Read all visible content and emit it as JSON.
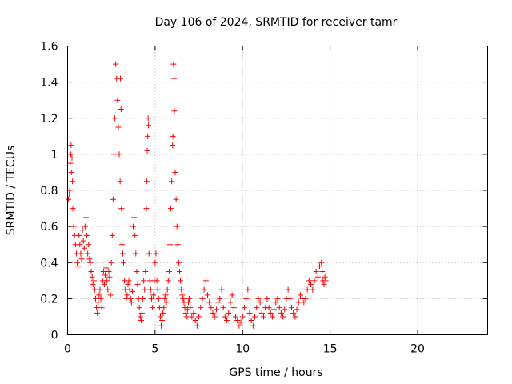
{
  "chart_data": {
    "type": "scatter",
    "title": "Day 106 of 2024, SRMTID for receiver tamr",
    "xlabel": "GPS time / hours",
    "ylabel": "SRMTID / TECUs",
    "xlim": [
      0,
      24
    ],
    "ylim": [
      0,
      1.6
    ],
    "xticks": [
      0,
      5,
      10,
      15,
      20
    ],
    "yticks": [
      0,
      0.2,
      0.4,
      0.6,
      0.8,
      1.0,
      1.2,
      1.4,
      1.6
    ],
    "xtick_labels": [
      "0",
      "5",
      "10",
      "15",
      "20"
    ],
    "ytick_labels": [
      "0",
      "0.2",
      "0.4",
      "0.6",
      "0.8",
      "1",
      "1.2",
      "1.4",
      "1.6"
    ],
    "grid": true,
    "marker": "+",
    "color": "#ff0000",
    "series": [
      {
        "name": "tamr",
        "points": [
          [
            0.05,
            0.75
          ],
          [
            0.1,
            0.78
          ],
          [
            0.12,
            0.8
          ],
          [
            0.15,
            0.95
          ],
          [
            0.18,
            1.0
          ],
          [
            0.2,
            1.05
          ],
          [
            0.22,
            0.9
          ],
          [
            0.25,
            0.98
          ],
          [
            0.28,
            0.85
          ],
          [
            0.3,
            0.7
          ],
          [
            0.35,
            0.6
          ],
          [
            0.4,
            0.55
          ],
          [
            0.45,
            0.5
          ],
          [
            0.5,
            0.45
          ],
          [
            0.55,
            0.4
          ],
          [
            0.6,
            0.38
          ],
          [
            0.65,
            0.55
          ],
          [
            0.7,
            0.5
          ],
          [
            0.75,
            0.45
          ],
          [
            0.8,
            0.42
          ],
          [
            0.85,
            0.58
          ],
          [
            0.9,
            0.52
          ],
          [
            0.95,
            0.48
          ],
          [
            1.0,
            0.6
          ],
          [
            1.05,
            0.65
          ],
          [
            1.1,
            0.55
          ],
          [
            1.15,
            0.45
          ],
          [
            1.2,
            0.5
          ],
          [
            1.25,
            0.42
          ],
          [
            1.3,
            0.4
          ],
          [
            1.35,
            0.35
          ],
          [
            1.4,
            0.32
          ],
          [
            1.45,
            0.28
          ],
          [
            1.5,
            0.3
          ],
          [
            1.55,
            0.25
          ],
          [
            1.6,
            0.2
          ],
          [
            1.65,
            0.15
          ],
          [
            1.7,
            0.12
          ],
          [
            1.75,
            0.18
          ],
          [
            1.8,
            0.22
          ],
          [
            1.85,
            0.25
          ],
          [
            1.9,
            0.2
          ],
          [
            1.95,
            0.15
          ],
          [
            2.0,
            0.3
          ],
          [
            2.05,
            0.35
          ],
          [
            2.1,
            0.28
          ],
          [
            2.15,
            0.33
          ],
          [
            2.2,
            0.37
          ],
          [
            2.25,
            0.3
          ],
          [
            2.3,
            0.25
          ],
          [
            2.35,
            0.35
          ],
          [
            2.4,
            0.32
          ],
          [
            2.45,
            0.22
          ],
          [
            2.5,
            0.4
          ],
          [
            2.55,
            0.55
          ],
          [
            2.6,
            0.75
          ],
          [
            2.65,
            1.0
          ],
          [
            2.7,
            1.2
          ],
          [
            2.75,
            1.5
          ],
          [
            2.8,
            1.42
          ],
          [
            2.85,
            1.3
          ],
          [
            2.9,
            1.15
          ],
          [
            2.95,
            1.0
          ],
          [
            3.0,
            0.85
          ],
          [
            3.02,
            1.42
          ],
          [
            3.05,
            1.25
          ],
          [
            3.08,
            0.7
          ],
          [
            3.1,
            0.5
          ],
          [
            3.15,
            0.45
          ],
          [
            3.2,
            0.4
          ],
          [
            3.25,
            0.3
          ],
          [
            3.3,
            0.25
          ],
          [
            3.35,
            0.2
          ],
          [
            3.4,
            0.22
          ],
          [
            3.45,
            0.28
          ],
          [
            3.5,
            0.3
          ],
          [
            3.55,
            0.25
          ],
          [
            3.6,
            0.2
          ],
          [
            3.65,
            0.18
          ],
          [
            3.7,
            0.24
          ],
          [
            3.75,
            0.6
          ],
          [
            3.8,
            0.65
          ],
          [
            3.85,
            0.55
          ],
          [
            3.9,
            0.45
          ],
          [
            3.95,
            0.35
          ],
          [
            4.0,
            0.28
          ],
          [
            4.05,
            0.2
          ],
          [
            4.1,
            0.15
          ],
          [
            4.15,
            0.1
          ],
          [
            4.2,
            0.08
          ],
          [
            4.25,
            0.12
          ],
          [
            4.3,
            0.2
          ],
          [
            4.35,
            0.3
          ],
          [
            4.4,
            0.25
          ],
          [
            4.45,
            0.35
          ],
          [
            4.5,
            0.7
          ],
          [
            4.52,
            0.85
          ],
          [
            4.55,
            1.02
          ],
          [
            4.58,
            1.1
          ],
          [
            4.6,
            1.2
          ],
          [
            4.62,
            1.16
          ],
          [
            4.65,
            0.45
          ],
          [
            4.7,
            0.3
          ],
          [
            4.75,
            0.25
          ],
          [
            4.8,
            0.2
          ],
          [
            4.85,
            0.15
          ],
          [
            4.9,
            0.22
          ],
          [
            4.95,
            0.3
          ],
          [
            5.0,
            0.4
          ],
          [
            5.05,
            0.45
          ],
          [
            5.1,
            0.3
          ],
          [
            5.15,
            0.25
          ],
          [
            5.2,
            0.2
          ],
          [
            5.25,
            0.15
          ],
          [
            5.3,
            0.1
          ],
          [
            5.35,
            0.05
          ],
          [
            5.4,
            0.08
          ],
          [
            5.45,
            0.12
          ],
          [
            5.5,
            0.15
          ],
          [
            5.55,
            0.2
          ],
          [
            5.6,
            0.22
          ],
          [
            5.65,
            0.18
          ],
          [
            5.7,
            0.25
          ],
          [
            5.75,
            0.3
          ],
          [
            5.8,
            0.35
          ],
          [
            5.85,
            0.5
          ],
          [
            5.9,
            0.7
          ],
          [
            5.95,
            0.85
          ],
          [
            6.0,
            1.05
          ],
          [
            6.02,
            1.1
          ],
          [
            6.05,
            1.5
          ],
          [
            6.08,
            1.42
          ],
          [
            6.1,
            1.24
          ],
          [
            6.15,
            0.9
          ],
          [
            6.2,
            0.75
          ],
          [
            6.25,
            0.6
          ],
          [
            6.3,
            0.5
          ],
          [
            6.35,
            0.4
          ],
          [
            6.4,
            0.35
          ],
          [
            6.45,
            0.3
          ],
          [
            6.5,
            0.25
          ],
          [
            6.55,
            0.22
          ],
          [
            6.6,
            0.2
          ],
          [
            6.65,
            0.18
          ],
          [
            6.7,
            0.15
          ],
          [
            6.75,
            0.12
          ],
          [
            6.8,
            0.1
          ],
          [
            6.85,
            0.14
          ],
          [
            6.9,
            0.18
          ],
          [
            6.95,
            0.2
          ],
          [
            7.0,
            0.15
          ],
          [
            7.1,
            0.1
          ],
          [
            7.2,
            0.12
          ],
          [
            7.3,
            0.08
          ],
          [
            7.4,
            0.05
          ],
          [
            7.5,
            0.1
          ],
          [
            7.6,
            0.15
          ],
          [
            7.7,
            0.2
          ],
          [
            7.8,
            0.25
          ],
          [
            7.9,
            0.3
          ],
          [
            8.0,
            0.22
          ],
          [
            8.1,
            0.18
          ],
          [
            8.2,
            0.15
          ],
          [
            8.3,
            0.12
          ],
          [
            8.4,
            0.1
          ],
          [
            8.5,
            0.14
          ],
          [
            8.6,
            0.18
          ],
          [
            8.7,
            0.2
          ],
          [
            8.8,
            0.25
          ],
          [
            8.9,
            0.15
          ],
          [
            9.0,
            0.1
          ],
          [
            9.1,
            0.08
          ],
          [
            9.2,
            0.12
          ],
          [
            9.3,
            0.18
          ],
          [
            9.4,
            0.22
          ],
          [
            9.5,
            0.15
          ],
          [
            9.6,
            0.1
          ],
          [
            9.7,
            0.08
          ],
          [
            9.8,
            0.05
          ],
          [
            9.9,
            0.07
          ],
          [
            10.0,
            0.1
          ],
          [
            10.1,
            0.15
          ],
          [
            10.2,
            0.2
          ],
          [
            10.3,
            0.25
          ],
          [
            10.4,
            0.12
          ],
          [
            10.5,
            0.08
          ],
          [
            10.6,
            0.05
          ],
          [
            10.7,
            0.1
          ],
          [
            10.8,
            0.15
          ],
          [
            10.9,
            0.2
          ],
          [
            11.0,
            0.18
          ],
          [
            11.1,
            0.12
          ],
          [
            11.2,
            0.1
          ],
          [
            11.3,
            0.15
          ],
          [
            11.4,
            0.2
          ],
          [
            11.5,
            0.15
          ],
          [
            11.6,
            0.12
          ],
          [
            11.7,
            0.1
          ],
          [
            11.8,
            0.14
          ],
          [
            11.9,
            0.18
          ],
          [
            12.0,
            0.2
          ],
          [
            12.1,
            0.15
          ],
          [
            12.2,
            0.12
          ],
          [
            12.3,
            0.1
          ],
          [
            12.4,
            0.14
          ],
          [
            12.5,
            0.2
          ],
          [
            12.6,
            0.25
          ],
          [
            12.7,
            0.2
          ],
          [
            12.8,
            0.15
          ],
          [
            12.9,
            0.12
          ],
          [
            13.0,
            0.1
          ],
          [
            13.1,
            0.14
          ],
          [
            13.2,
            0.18
          ],
          [
            13.3,
            0.22
          ],
          [
            13.4,
            0.2
          ],
          [
            13.5,
            0.18
          ],
          [
            13.6,
            0.2
          ],
          [
            13.7,
            0.25
          ],
          [
            13.8,
            0.3
          ],
          [
            13.9,
            0.28
          ],
          [
            14.0,
            0.25
          ],
          [
            14.1,
            0.3
          ],
          [
            14.2,
            0.35
          ],
          [
            14.3,
            0.32
          ],
          [
            14.4,
            0.38
          ],
          [
            14.5,
            0.4
          ],
          [
            14.55,
            0.35
          ],
          [
            14.6,
            0.3
          ],
          [
            14.65,
            0.28
          ],
          [
            14.7,
            0.32
          ],
          [
            14.75,
            0.3
          ]
        ]
      }
    ]
  }
}
